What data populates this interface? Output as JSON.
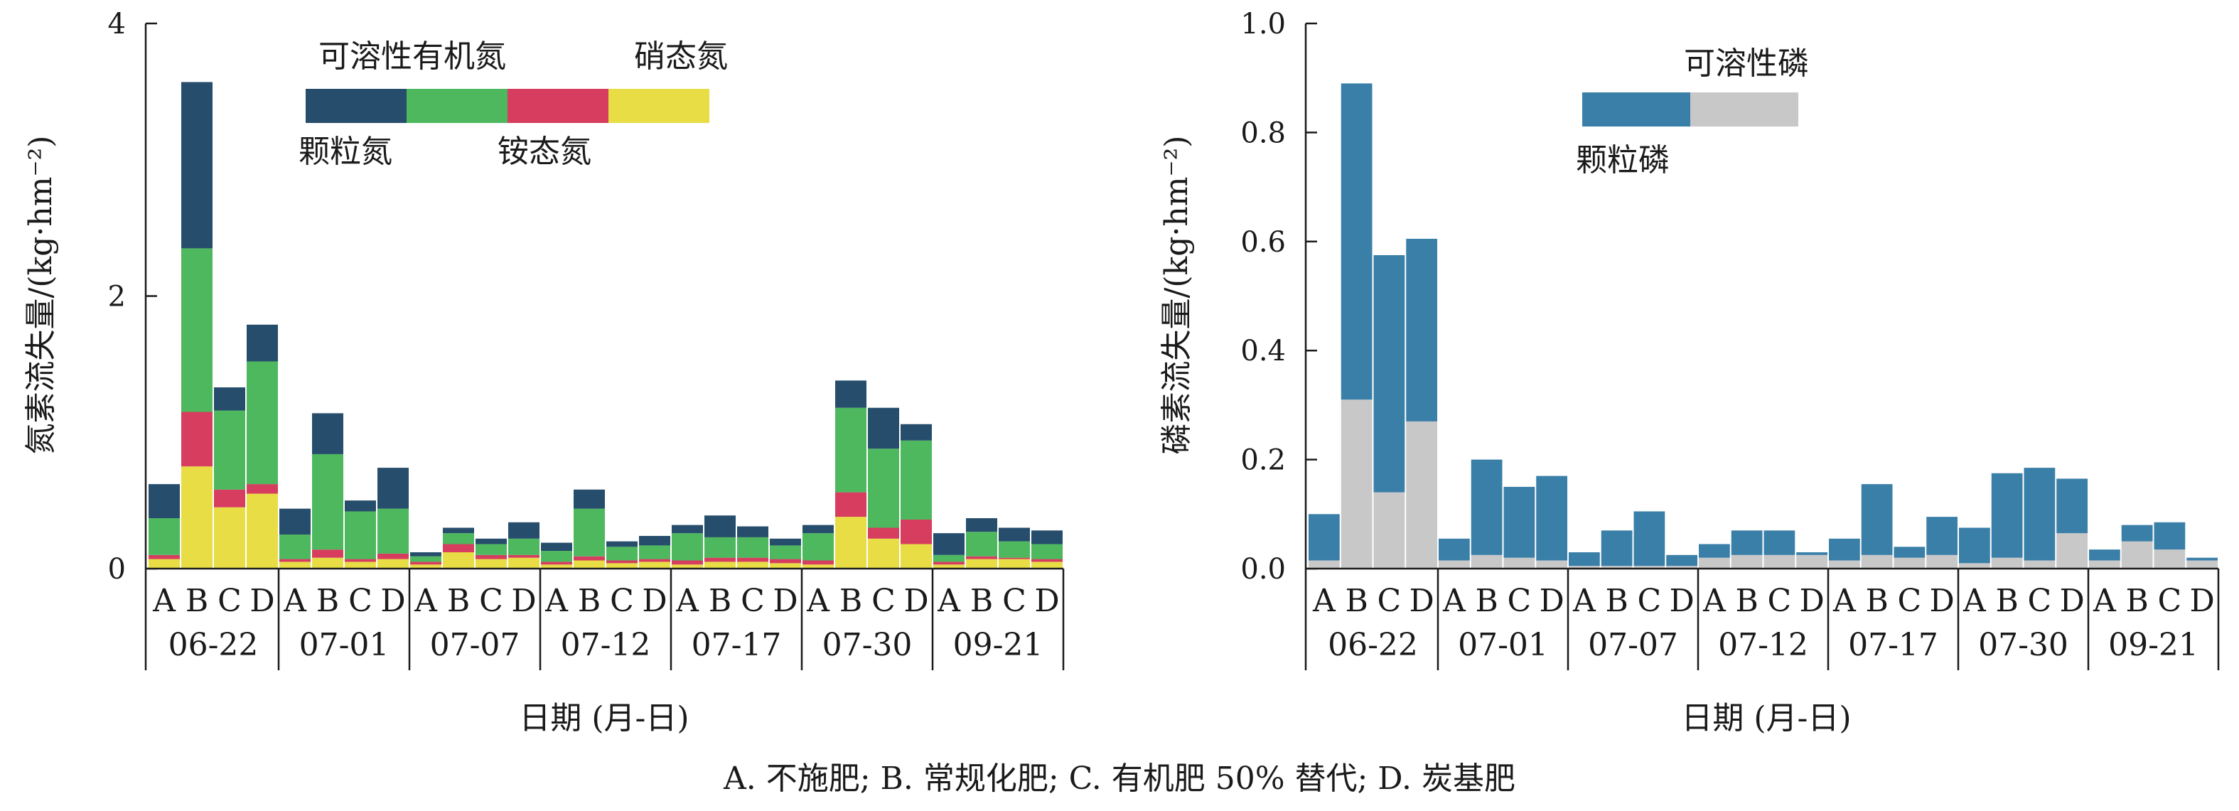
{
  "caption": "A. 不施肥;  B. 常规化肥;  C. 有机肥 50% 替代;  D. 炭基肥",
  "treatments": [
    "A",
    "B",
    "C",
    "D"
  ],
  "dates": [
    "06-22",
    "07-01",
    "07-07",
    "07-12",
    "07-17",
    "07-30",
    "09-21"
  ],
  "chart_data": [
    {
      "type": "bar",
      "stacked": true,
      "title": "",
      "xlabel": "日期 (月-日)",
      "ylabel": "氮素流失量/(kg·hm⁻²)",
      "ylim": [
        0,
        4
      ],
      "yticks": [
        0,
        2,
        4
      ],
      "grid": false,
      "legend_position": "top",
      "categories": [
        "06-22 A",
        "06-22 B",
        "06-22 C",
        "06-22 D",
        "07-01 A",
        "07-01 B",
        "07-01 C",
        "07-01 D",
        "07-07 A",
        "07-07 B",
        "07-07 C",
        "07-07 D",
        "07-12 A",
        "07-12 B",
        "07-12 C",
        "07-12 D",
        "07-17 A",
        "07-17 B",
        "07-17 C",
        "07-17 D",
        "07-30 A",
        "07-30 B",
        "07-30 C",
        "07-30 D",
        "09-21 A",
        "09-21 B",
        "09-21 C",
        "09-21 D"
      ],
      "series": [
        {
          "name": "硝态氮",
          "color": "#e8dd45",
          "values": [
            0.07,
            0.75,
            0.45,
            0.55,
            0.05,
            0.08,
            0.05,
            0.07,
            0.03,
            0.12,
            0.07,
            0.08,
            0.03,
            0.06,
            0.04,
            0.05,
            0.03,
            0.05,
            0.05,
            0.04,
            0.03,
            0.38,
            0.22,
            0.18,
            0.03,
            0.07,
            0.07,
            0.05
          ]
        },
        {
          "name": "铵态氮",
          "color": "#d63d5e",
          "values": [
            0.03,
            0.4,
            0.13,
            0.07,
            0.02,
            0.06,
            0.02,
            0.04,
            0.02,
            0.06,
            0.03,
            0.02,
            0.02,
            0.03,
            0.02,
            0.02,
            0.03,
            0.03,
            0.03,
            0.03,
            0.03,
            0.18,
            0.08,
            0.18,
            0.02,
            0.02,
            0.01,
            0.02
          ]
        },
        {
          "name": "可溶性有机氮",
          "color": "#4db85e",
          "values": [
            0.27,
            1.2,
            0.58,
            0.9,
            0.18,
            0.7,
            0.35,
            0.33,
            0.04,
            0.08,
            0.08,
            0.12,
            0.08,
            0.35,
            0.1,
            0.1,
            0.2,
            0.15,
            0.15,
            0.1,
            0.2,
            0.62,
            0.58,
            0.58,
            0.05,
            0.18,
            0.12,
            0.11
          ]
        },
        {
          "name": "颗粒氮",
          "color": "#264d6b",
          "values": [
            0.25,
            1.22,
            0.17,
            0.27,
            0.19,
            0.3,
            0.08,
            0.3,
            0.03,
            0.04,
            0.04,
            0.12,
            0.06,
            0.14,
            0.04,
            0.07,
            0.06,
            0.16,
            0.08,
            0.05,
            0.06,
            0.2,
            0.3,
            0.12,
            0.16,
            0.1,
            0.1,
            0.1
          ]
        }
      ]
    },
    {
      "type": "bar",
      "stacked": true,
      "title": "",
      "xlabel": "日期 (月-日)",
      "ylabel": "磷素流失量/(kg·hm⁻²)",
      "ylim": [
        0,
        1.0
      ],
      "yticks": [
        0,
        0.2,
        0.4,
        0.6,
        0.8,
        1.0
      ],
      "grid": false,
      "legend_position": "top",
      "categories": [
        "06-22 A",
        "06-22 B",
        "06-22 C",
        "06-22 D",
        "07-01 A",
        "07-01 B",
        "07-01 C",
        "07-01 D",
        "07-07 A",
        "07-07 B",
        "07-07 C",
        "07-07 D",
        "07-12 A",
        "07-12 B",
        "07-12 C",
        "07-12 D",
        "07-17 A",
        "07-17 B",
        "07-17 C",
        "07-17 D",
        "07-30 A",
        "07-30 B",
        "07-30 C",
        "07-30 D",
        "09-21 A",
        "09-21 B",
        "09-21 C",
        "09-21 D"
      ],
      "series": [
        {
          "name": "可溶性磷",
          "color": "#c8c8c8",
          "values": [
            0.015,
            0.31,
            0.14,
            0.27,
            0.015,
            0.025,
            0.02,
            0.015,
            0.005,
            0.005,
            0.005,
            0.005,
            0.02,
            0.025,
            0.025,
            0.025,
            0.015,
            0.025,
            0.02,
            0.025,
            0.01,
            0.02,
            0.015,
            0.065,
            0.015,
            0.05,
            0.035,
            0.015
          ]
        },
        {
          "name": "颗粒磷",
          "color": "#3a7fa8",
          "values": [
            0.085,
            0.58,
            0.435,
            0.335,
            0.04,
            0.175,
            0.13,
            0.155,
            0.025,
            0.065,
            0.1,
            0.02,
            0.025,
            0.045,
            0.045,
            0.005,
            0.04,
            0.13,
            0.02,
            0.07,
            0.065,
            0.155,
            0.17,
            0.1,
            0.02,
            0.03,
            0.05,
            0.005
          ]
        }
      ]
    }
  ]
}
